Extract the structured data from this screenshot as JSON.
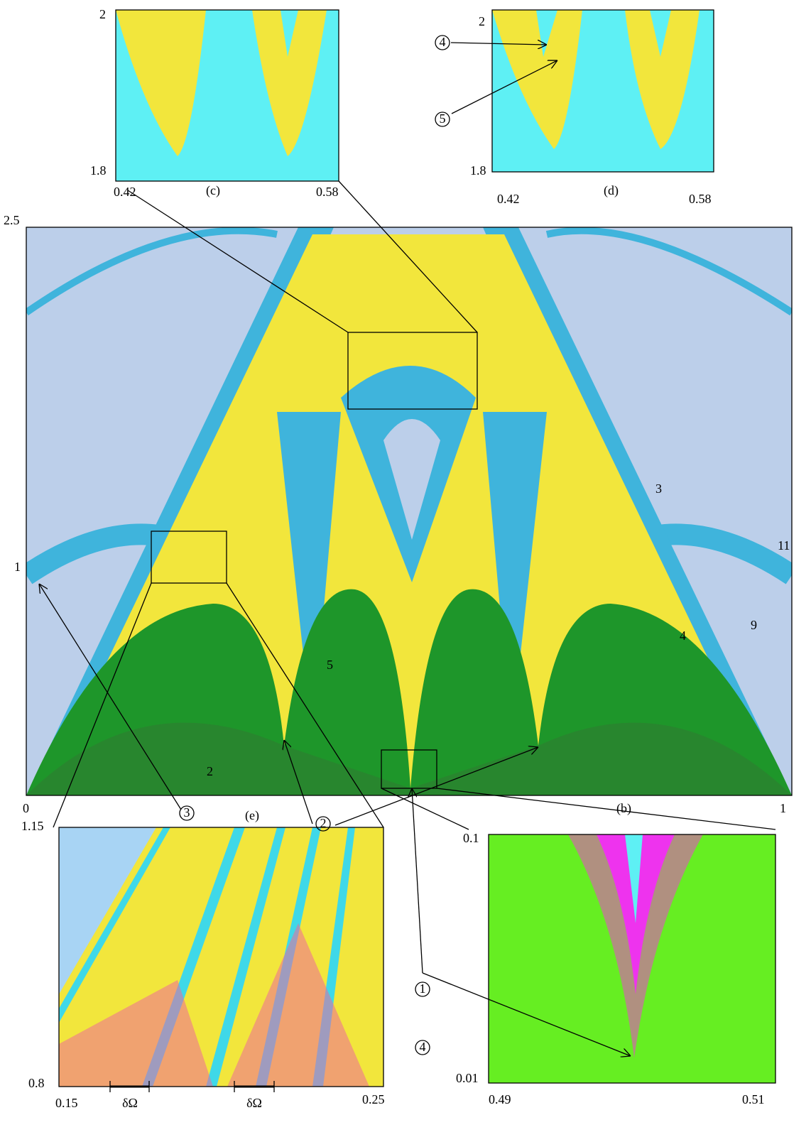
{
  "main": {
    "y_top": "2.5",
    "y_mid": "1",
    "x_left": "0",
    "x_right": "1",
    "region_labels": [
      "3",
      "11",
      "4",
      "9",
      "5",
      "2"
    ]
  },
  "inset_c": {
    "caption": "(c)",
    "y_top": "2",
    "y_bottom": "1.8",
    "x_left": "0.42",
    "x_right": "0.58"
  },
  "inset_d": {
    "caption": "(d)",
    "y_top": "2",
    "y_bottom": "1.8",
    "x_left": "0.42",
    "x_right": "0.58",
    "markers": [
      "4",
      "5"
    ]
  },
  "inset_e": {
    "caption": "(e)",
    "y_top": "1.15",
    "y_bottom": "0.8",
    "x_left": "0.15",
    "x_right": "0.25",
    "intervals": [
      "δΩ",
      "δΩ"
    ]
  },
  "inset_b": {
    "caption": "(b)",
    "y_top": "0.1",
    "y_bottom": "0.01",
    "x_left": "0.49",
    "x_right": "0.51"
  },
  "markers": [
    "3",
    "2",
    "1",
    "4"
  ]
}
